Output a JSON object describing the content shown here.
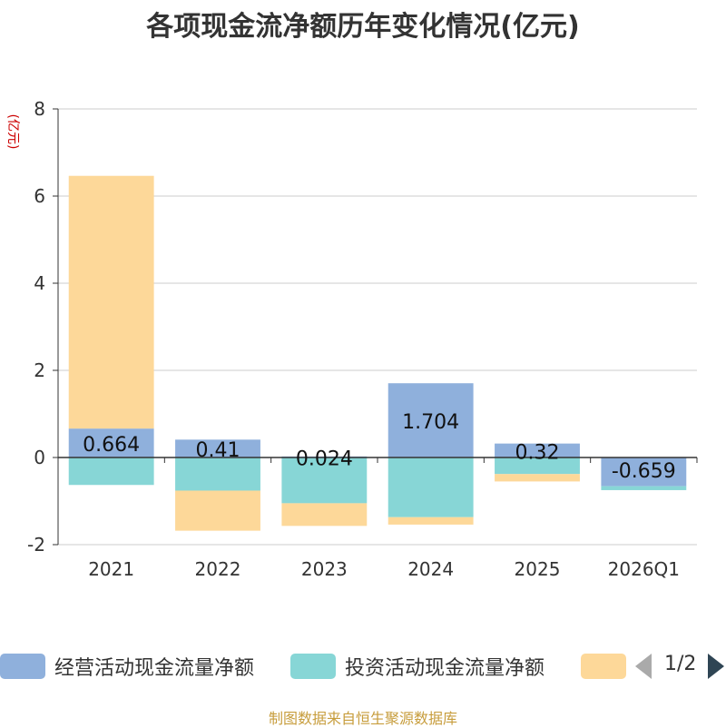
{
  "chart_data": {
    "type": "bar",
    "stacked": true,
    "title": "各项现金流净额历年变化情况(亿元)",
    "ylabel": "(亿元)",
    "ylim": [
      -2,
      8
    ],
    "yticks": [
      -2,
      0,
      2,
      4,
      6,
      8
    ],
    "grid": true,
    "categories": [
      "2021",
      "2022",
      "2023",
      "2024",
      "2025",
      "2026Q1"
    ],
    "series": [
      {
        "name": "经营活动现金流量净额",
        "color": "#8fb0dc",
        "values": [
          0.664,
          0.41,
          0.024,
          1.704,
          0.32,
          -0.659
        ]
      },
      {
        "name": "投资活动现金流量净额",
        "color": "#87d6d6",
        "values": [
          -0.63,
          -0.76,
          -1.05,
          -1.37,
          -0.38,
          -0.09
        ]
      },
      {
        "name": "",
        "color": "#fdd899",
        "values": [
          5.8,
          -0.92,
          -0.52,
          -0.17,
          -0.17,
          0
        ]
      }
    ],
    "data_labels": [
      "0.664",
      "0.41",
      "0.024",
      "1.704",
      "0.32",
      "-0.659"
    ],
    "legend_position": "bottom"
  },
  "legend": {
    "page": "1/2"
  },
  "source": "制图数据来自恒生聚源数据库"
}
